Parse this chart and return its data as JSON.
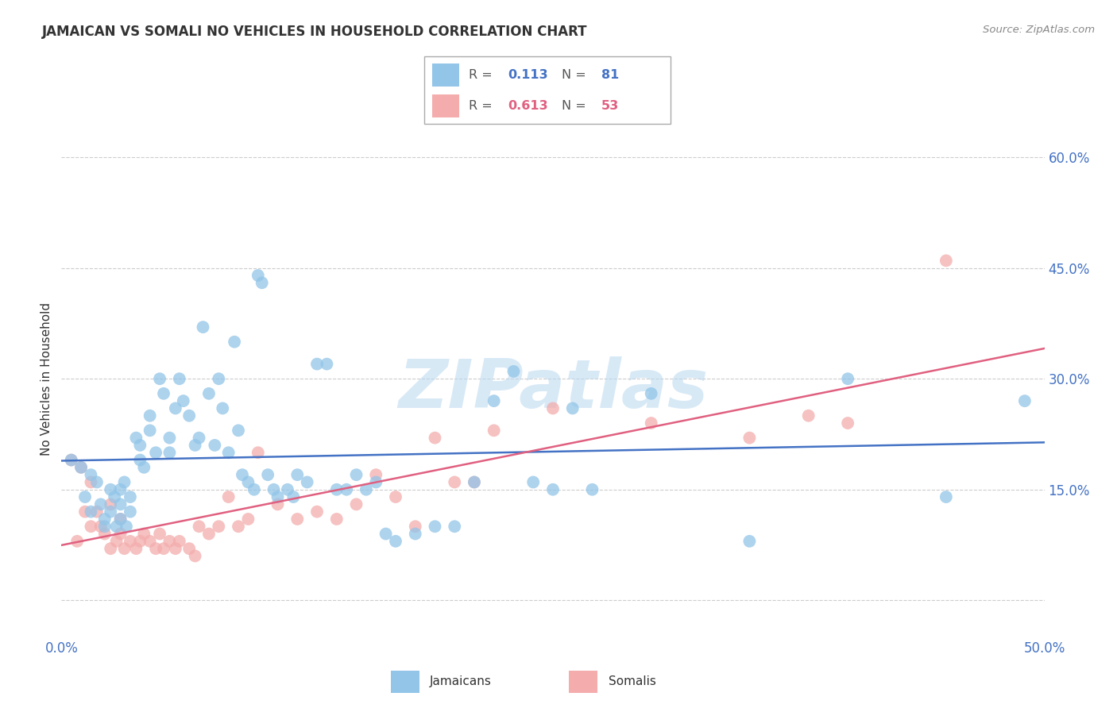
{
  "title": "JAMAICAN VS SOMALI NO VEHICLES IN HOUSEHOLD CORRELATION CHART",
  "source": "Source: ZipAtlas.com",
  "ylabel": "No Vehicles in Household",
  "xmin": 0.0,
  "xmax": 0.5,
  "ymin": -0.05,
  "ymax": 0.65,
  "jamaican_color": "#92C5E8",
  "somali_color": "#F4ACAC",
  "jamaican_line_color": "#4472C4",
  "somali_line_color": "#E06080",
  "legend_R_jamaican": "0.113",
  "legend_N_jamaican": "81",
  "legend_R_somali": "0.613",
  "legend_N_somali": "53",
  "watermark": "ZIPatlas",
  "jamaican_x": [
    0.005,
    0.01,
    0.012,
    0.015,
    0.015,
    0.018,
    0.02,
    0.022,
    0.022,
    0.025,
    0.025,
    0.027,
    0.028,
    0.03,
    0.03,
    0.03,
    0.032,
    0.033,
    0.035,
    0.035,
    0.038,
    0.04,
    0.04,
    0.042,
    0.045,
    0.045,
    0.048,
    0.05,
    0.052,
    0.055,
    0.055,
    0.058,
    0.06,
    0.062,
    0.065,
    0.068,
    0.07,
    0.072,
    0.075,
    0.078,
    0.08,
    0.082,
    0.085,
    0.088,
    0.09,
    0.092,
    0.095,
    0.098,
    0.1,
    0.102,
    0.105,
    0.108,
    0.11,
    0.115,
    0.118,
    0.12,
    0.125,
    0.13,
    0.135,
    0.14,
    0.145,
    0.15,
    0.155,
    0.16,
    0.165,
    0.17,
    0.18,
    0.19,
    0.2,
    0.21,
    0.22,
    0.23,
    0.24,
    0.25,
    0.26,
    0.27,
    0.3,
    0.35,
    0.4,
    0.45,
    0.49
  ],
  "jamaican_y": [
    0.19,
    0.18,
    0.14,
    0.17,
    0.12,
    0.16,
    0.13,
    0.11,
    0.1,
    0.15,
    0.12,
    0.14,
    0.1,
    0.15,
    0.13,
    0.11,
    0.16,
    0.1,
    0.14,
    0.12,
    0.22,
    0.21,
    0.19,
    0.18,
    0.25,
    0.23,
    0.2,
    0.3,
    0.28,
    0.22,
    0.2,
    0.26,
    0.3,
    0.27,
    0.25,
    0.21,
    0.22,
    0.37,
    0.28,
    0.21,
    0.3,
    0.26,
    0.2,
    0.35,
    0.23,
    0.17,
    0.16,
    0.15,
    0.44,
    0.43,
    0.17,
    0.15,
    0.14,
    0.15,
    0.14,
    0.17,
    0.16,
    0.32,
    0.32,
    0.15,
    0.15,
    0.17,
    0.15,
    0.16,
    0.09,
    0.08,
    0.09,
    0.1,
    0.1,
    0.16,
    0.27,
    0.31,
    0.16,
    0.15,
    0.26,
    0.15,
    0.28,
    0.08,
    0.3,
    0.14,
    0.27
  ],
  "somali_x": [
    0.005,
    0.008,
    0.01,
    0.012,
    0.015,
    0.015,
    0.018,
    0.02,
    0.022,
    0.025,
    0.025,
    0.028,
    0.03,
    0.03,
    0.032,
    0.035,
    0.038,
    0.04,
    0.042,
    0.045,
    0.048,
    0.05,
    0.052,
    0.055,
    0.058,
    0.06,
    0.065,
    0.068,
    0.07,
    0.075,
    0.08,
    0.085,
    0.09,
    0.095,
    0.1,
    0.11,
    0.12,
    0.13,
    0.14,
    0.15,
    0.16,
    0.17,
    0.18,
    0.19,
    0.2,
    0.21,
    0.22,
    0.25,
    0.3,
    0.35,
    0.38,
    0.4,
    0.45
  ],
  "somali_y": [
    0.19,
    0.08,
    0.18,
    0.12,
    0.16,
    0.1,
    0.12,
    0.1,
    0.09,
    0.13,
    0.07,
    0.08,
    0.11,
    0.09,
    0.07,
    0.08,
    0.07,
    0.08,
    0.09,
    0.08,
    0.07,
    0.09,
    0.07,
    0.08,
    0.07,
    0.08,
    0.07,
    0.06,
    0.1,
    0.09,
    0.1,
    0.14,
    0.1,
    0.11,
    0.2,
    0.13,
    0.11,
    0.12,
    0.11,
    0.13,
    0.17,
    0.14,
    0.1,
    0.22,
    0.16,
    0.16,
    0.23,
    0.26,
    0.24,
    0.22,
    0.25,
    0.24,
    0.46
  ],
  "background_color": "#FFFFFF",
  "grid_color": "#CCCCCC"
}
